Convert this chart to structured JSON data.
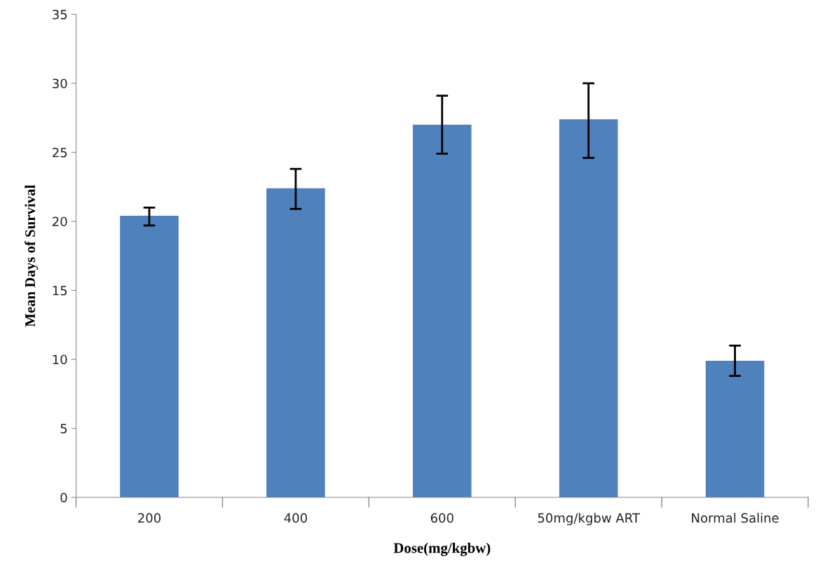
{
  "chart_data": {
    "type": "bar",
    "xlabel": "Dose(mg/kgbw)",
    "ylabel": "Mean Days of Survival",
    "categories": [
      "200",
      "400",
      "600",
      "50mg/kgbw ART",
      "Normal Saline"
    ],
    "values": [
      20.4,
      22.4,
      27.0,
      27.4,
      9.9
    ],
    "errors": [
      [
        19.7,
        21.0
      ],
      [
        20.9,
        23.8
      ],
      [
        24.9,
        29.1
      ],
      [
        24.6,
        30.0
      ],
      [
        8.8,
        11.0
      ]
    ],
    "color": "#4f81bd",
    "ylim": [
      0,
      35
    ],
    "yticks": [
      0,
      5,
      10,
      15,
      20,
      25,
      30,
      35
    ],
    "grid": false,
    "legend": false
  }
}
